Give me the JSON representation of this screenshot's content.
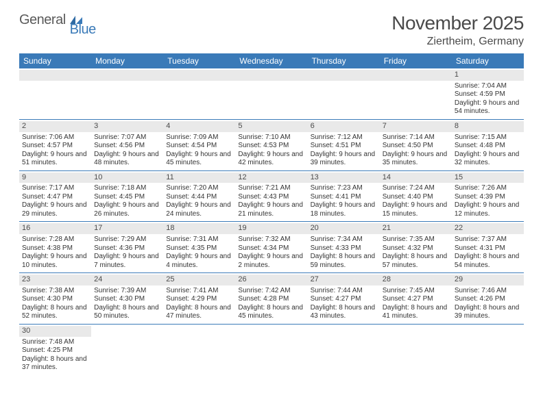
{
  "logo": {
    "text1": "General",
    "text2": "Blue",
    "accent": "#3a7ab8"
  },
  "title": "November 2025",
  "location": "Ziertheim, Germany",
  "colors": {
    "header_bg": "#3a7ab8",
    "header_text": "#ffffff",
    "daynum_bg": "#e9e9e9",
    "divider": "#3a7ab8",
    "text": "#333333"
  },
  "weekdays": [
    "Sunday",
    "Monday",
    "Tuesday",
    "Wednesday",
    "Thursday",
    "Friday",
    "Saturday"
  ],
  "weeks": [
    [
      {
        "empty": true
      },
      {
        "empty": true
      },
      {
        "empty": true
      },
      {
        "empty": true
      },
      {
        "empty": true
      },
      {
        "empty": true
      },
      {
        "day": "1",
        "sunrise": "Sunrise: 7:04 AM",
        "sunset": "Sunset: 4:59 PM",
        "daylight": "Daylight: 9 hours and 54 minutes."
      }
    ],
    [
      {
        "day": "2",
        "sunrise": "Sunrise: 7:06 AM",
        "sunset": "Sunset: 4:57 PM",
        "daylight": "Daylight: 9 hours and 51 minutes."
      },
      {
        "day": "3",
        "sunrise": "Sunrise: 7:07 AM",
        "sunset": "Sunset: 4:56 PM",
        "daylight": "Daylight: 9 hours and 48 minutes."
      },
      {
        "day": "4",
        "sunrise": "Sunrise: 7:09 AM",
        "sunset": "Sunset: 4:54 PM",
        "daylight": "Daylight: 9 hours and 45 minutes."
      },
      {
        "day": "5",
        "sunrise": "Sunrise: 7:10 AM",
        "sunset": "Sunset: 4:53 PM",
        "daylight": "Daylight: 9 hours and 42 minutes."
      },
      {
        "day": "6",
        "sunrise": "Sunrise: 7:12 AM",
        "sunset": "Sunset: 4:51 PM",
        "daylight": "Daylight: 9 hours and 39 minutes."
      },
      {
        "day": "7",
        "sunrise": "Sunrise: 7:14 AM",
        "sunset": "Sunset: 4:50 PM",
        "daylight": "Daylight: 9 hours and 35 minutes."
      },
      {
        "day": "8",
        "sunrise": "Sunrise: 7:15 AM",
        "sunset": "Sunset: 4:48 PM",
        "daylight": "Daylight: 9 hours and 32 minutes."
      }
    ],
    [
      {
        "day": "9",
        "sunrise": "Sunrise: 7:17 AM",
        "sunset": "Sunset: 4:47 PM",
        "daylight": "Daylight: 9 hours and 29 minutes."
      },
      {
        "day": "10",
        "sunrise": "Sunrise: 7:18 AM",
        "sunset": "Sunset: 4:45 PM",
        "daylight": "Daylight: 9 hours and 26 minutes."
      },
      {
        "day": "11",
        "sunrise": "Sunrise: 7:20 AM",
        "sunset": "Sunset: 4:44 PM",
        "daylight": "Daylight: 9 hours and 24 minutes."
      },
      {
        "day": "12",
        "sunrise": "Sunrise: 7:21 AM",
        "sunset": "Sunset: 4:43 PM",
        "daylight": "Daylight: 9 hours and 21 minutes."
      },
      {
        "day": "13",
        "sunrise": "Sunrise: 7:23 AM",
        "sunset": "Sunset: 4:41 PM",
        "daylight": "Daylight: 9 hours and 18 minutes."
      },
      {
        "day": "14",
        "sunrise": "Sunrise: 7:24 AM",
        "sunset": "Sunset: 4:40 PM",
        "daylight": "Daylight: 9 hours and 15 minutes."
      },
      {
        "day": "15",
        "sunrise": "Sunrise: 7:26 AM",
        "sunset": "Sunset: 4:39 PM",
        "daylight": "Daylight: 9 hours and 12 minutes."
      }
    ],
    [
      {
        "day": "16",
        "sunrise": "Sunrise: 7:28 AM",
        "sunset": "Sunset: 4:38 PM",
        "daylight": "Daylight: 9 hours and 10 minutes."
      },
      {
        "day": "17",
        "sunrise": "Sunrise: 7:29 AM",
        "sunset": "Sunset: 4:36 PM",
        "daylight": "Daylight: 9 hours and 7 minutes."
      },
      {
        "day": "18",
        "sunrise": "Sunrise: 7:31 AM",
        "sunset": "Sunset: 4:35 PM",
        "daylight": "Daylight: 9 hours and 4 minutes."
      },
      {
        "day": "19",
        "sunrise": "Sunrise: 7:32 AM",
        "sunset": "Sunset: 4:34 PM",
        "daylight": "Daylight: 9 hours and 2 minutes."
      },
      {
        "day": "20",
        "sunrise": "Sunrise: 7:34 AM",
        "sunset": "Sunset: 4:33 PM",
        "daylight": "Daylight: 8 hours and 59 minutes."
      },
      {
        "day": "21",
        "sunrise": "Sunrise: 7:35 AM",
        "sunset": "Sunset: 4:32 PM",
        "daylight": "Daylight: 8 hours and 57 minutes."
      },
      {
        "day": "22",
        "sunrise": "Sunrise: 7:37 AM",
        "sunset": "Sunset: 4:31 PM",
        "daylight": "Daylight: 8 hours and 54 minutes."
      }
    ],
    [
      {
        "day": "23",
        "sunrise": "Sunrise: 7:38 AM",
        "sunset": "Sunset: 4:30 PM",
        "daylight": "Daylight: 8 hours and 52 minutes."
      },
      {
        "day": "24",
        "sunrise": "Sunrise: 7:39 AM",
        "sunset": "Sunset: 4:30 PM",
        "daylight": "Daylight: 8 hours and 50 minutes."
      },
      {
        "day": "25",
        "sunrise": "Sunrise: 7:41 AM",
        "sunset": "Sunset: 4:29 PM",
        "daylight": "Daylight: 8 hours and 47 minutes."
      },
      {
        "day": "26",
        "sunrise": "Sunrise: 7:42 AM",
        "sunset": "Sunset: 4:28 PM",
        "daylight": "Daylight: 8 hours and 45 minutes."
      },
      {
        "day": "27",
        "sunrise": "Sunrise: 7:44 AM",
        "sunset": "Sunset: 4:27 PM",
        "daylight": "Daylight: 8 hours and 43 minutes."
      },
      {
        "day": "28",
        "sunrise": "Sunrise: 7:45 AM",
        "sunset": "Sunset: 4:27 PM",
        "daylight": "Daylight: 8 hours and 41 minutes."
      },
      {
        "day": "29",
        "sunrise": "Sunrise: 7:46 AM",
        "sunset": "Sunset: 4:26 PM",
        "daylight": "Daylight: 8 hours and 39 minutes."
      }
    ],
    [
      {
        "day": "30",
        "sunrise": "Sunrise: 7:48 AM",
        "sunset": "Sunset: 4:25 PM",
        "daylight": "Daylight: 8 hours and 37 minutes."
      },
      {
        "empty": true
      },
      {
        "empty": true
      },
      {
        "empty": true
      },
      {
        "empty": true
      },
      {
        "empty": true
      },
      {
        "empty": true
      }
    ]
  ]
}
